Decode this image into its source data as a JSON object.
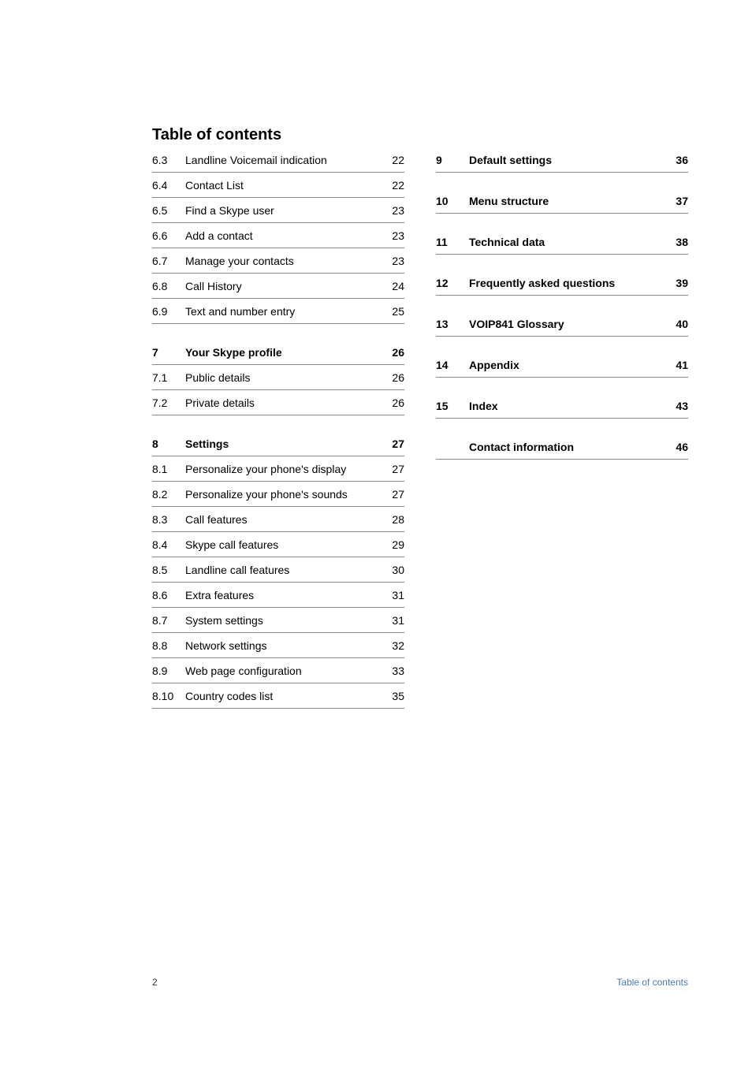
{
  "title": "Table of contents",
  "footer": {
    "pageNumber": "2",
    "label": "Table of contents"
  },
  "left": [
    {
      "type": "row",
      "num": "6.3",
      "label": "Landline Voicemail indication",
      "page": "22",
      "bold": false
    },
    {
      "type": "row",
      "num": "6.4",
      "label": "Contact List",
      "page": "22",
      "bold": false
    },
    {
      "type": "row",
      "num": "6.5",
      "label": "Find a Skype user",
      "page": "23",
      "bold": false
    },
    {
      "type": "row",
      "num": "6.6",
      "label": "Add a contact",
      "page": "23",
      "bold": false
    },
    {
      "type": "row",
      "num": "6.7",
      "label": "Manage your contacts",
      "page": "23",
      "bold": false
    },
    {
      "type": "row",
      "num": "6.8",
      "label": "Call History",
      "page": "24",
      "bold": false
    },
    {
      "type": "row",
      "num": "6.9",
      "label": "Text and number entry",
      "page": "25",
      "bold": false
    },
    {
      "type": "gap"
    },
    {
      "type": "row",
      "num": "7",
      "label": "Your Skype profile",
      "page": "26",
      "bold": true
    },
    {
      "type": "row",
      "num": "7.1",
      "label": "Public details",
      "page": "26",
      "bold": false
    },
    {
      "type": "row",
      "num": "7.2",
      "label": "Private details",
      "page": "26",
      "bold": false
    },
    {
      "type": "gap"
    },
    {
      "type": "row",
      "num": "8",
      "label": "Settings",
      "page": "27",
      "bold": true
    },
    {
      "type": "row",
      "num": "8.1",
      "label": "Personalize your phone's display",
      "page": "27",
      "bold": false
    },
    {
      "type": "row",
      "num": "8.2",
      "label": "Personalize your phone's sounds",
      "page": "27",
      "bold": false
    },
    {
      "type": "row",
      "num": "8.3",
      "label": "Call features",
      "page": "28",
      "bold": false
    },
    {
      "type": "row",
      "num": "8.4",
      "label": "Skype call features",
      "page": "29",
      "bold": false
    },
    {
      "type": "row",
      "num": "8.5",
      "label": "Landline call features",
      "page": "30",
      "bold": false
    },
    {
      "type": "row",
      "num": "8.6",
      "label": "Extra features",
      "page": "31",
      "bold": false
    },
    {
      "type": "row",
      "num": "8.7",
      "label": "System settings",
      "page": "31",
      "bold": false
    },
    {
      "type": "row",
      "num": "8.8",
      "label": "Network settings",
      "page": "32",
      "bold": false
    },
    {
      "type": "row",
      "num": "8.9",
      "label": "Web page configuration",
      "page": "33",
      "bold": false
    },
    {
      "type": "row",
      "num": "8.10",
      "label": "Country codes list",
      "page": "35",
      "bold": false
    }
  ],
  "right": [
    {
      "type": "row",
      "num": "9",
      "label": "Default settings",
      "page": "36",
      "bold": true
    },
    {
      "type": "gap"
    },
    {
      "type": "row",
      "num": "10",
      "label": "Menu structure",
      "page": "37",
      "bold": true
    },
    {
      "type": "gap"
    },
    {
      "type": "row",
      "num": "11",
      "label": "Technical data",
      "page": "38",
      "bold": true
    },
    {
      "type": "gap"
    },
    {
      "type": "row",
      "num": "12",
      "label": "Frequently asked questions",
      "page": "39",
      "bold": true
    },
    {
      "type": "gap"
    },
    {
      "type": "row",
      "num": "13",
      "label": "VOIP841 Glossary",
      "page": "40",
      "bold": true
    },
    {
      "type": "gap"
    },
    {
      "type": "row",
      "num": "14",
      "label": "Appendix",
      "page": "41",
      "bold": true
    },
    {
      "type": "gap"
    },
    {
      "type": "row",
      "num": "15",
      "label": "Index",
      "page": "43",
      "bold": true
    },
    {
      "type": "gap"
    },
    {
      "type": "row",
      "num": "",
      "label": "Contact information",
      "page": "46",
      "bold": true
    }
  ]
}
